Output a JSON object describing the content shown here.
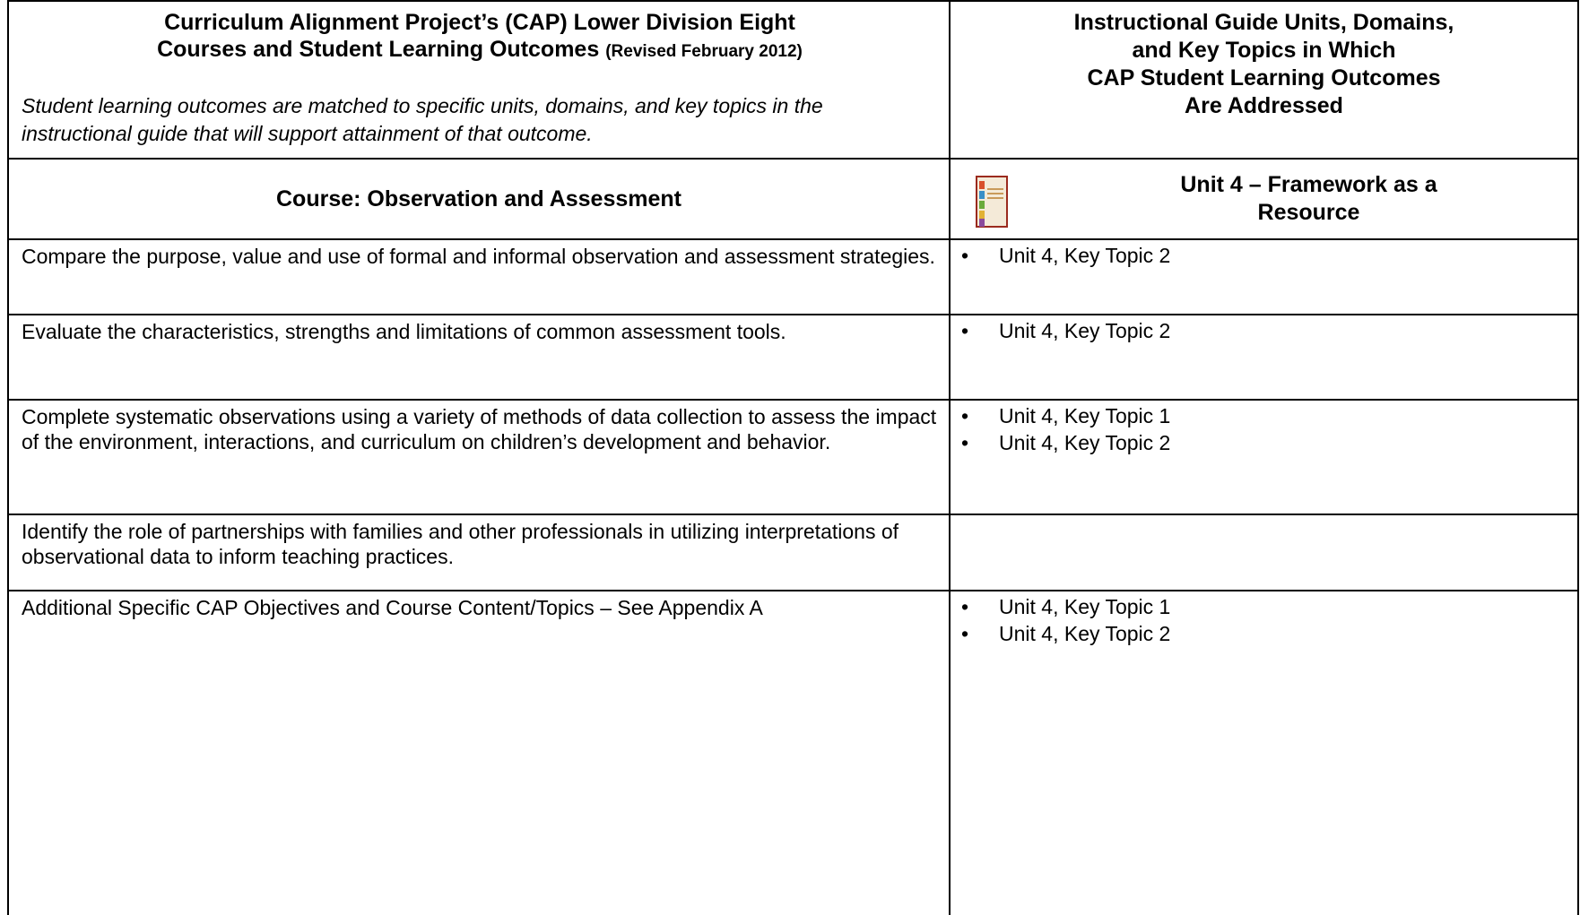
{
  "header": {
    "left": {
      "title_lines": [
        "Curriculum Alignment Project’s (CAP) Lower Division Eight",
        "Courses and Student Learning Outcomes"
      ],
      "revision": "(Revised February 2012)",
      "note": "Student learning outcomes are matched to specific units, domains, and key topics in the instructional guide that will support attainment of that outcome."
    },
    "right": {
      "title_lines": [
        "Instructional Guide Units, Domains,",
        "and Key Topics in Which",
        "CAP Student Learning Outcomes",
        "Are Addressed"
      ]
    }
  },
  "course": {
    "title": "Course:  Observation and Assessment",
    "unit_lines": [
      "Unit 4 – Framework as a",
      "Resource"
    ]
  },
  "rows": [
    {
      "outcome": "Compare the purpose, value and use of formal and informal observation and assessment strategies.",
      "topics": [
        "Unit 4, Key Topic 2"
      ]
    },
    {
      "outcome": "Evaluate the characteristics, strengths and limitations of common assessment tools.",
      "topics": [
        "Unit 4, Key Topic 2"
      ]
    },
    {
      "outcome": "Complete systematic observations using a variety of methods of data collection to assess the impact of the environment, interactions, and curriculum on children’s development and behavior.",
      "topics": [
        "Unit 4, Key Topic 1",
        "Unit 4, Key Topic 2"
      ]
    },
    {
      "outcome": "Identify the role of partnerships with families and other professionals in utilizing interpretations of observational data to inform teaching practices.",
      "topics": []
    },
    {
      "outcome": "Additional Specific CAP Objectives and Course Content/Topics – See Appendix A",
      "topics": [
        "Unit 4, Key Topic 1",
        "Unit 4, Key Topic 2"
      ]
    }
  ]
}
